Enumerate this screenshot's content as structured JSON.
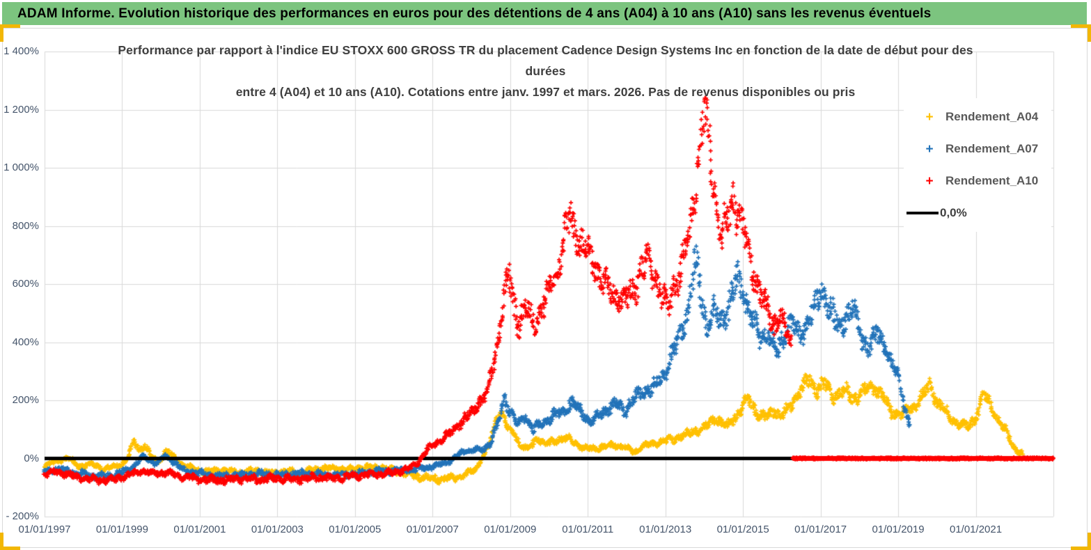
{
  "header": {
    "title": "ADAM Informe. Evolution historique des performances en euros pour des détentions de 4 ans (A04) à 10 ans (A10) sans les revenus éventuels"
  },
  "chart": {
    "title_line1": "Performance par rapport à l'indice EU STOXX 600 GROSS TR  du placement Cadence Design Systems Inc en fonction de la date de début pour des",
    "title_line2": "durées",
    "title_line3": "entre 4 (A04) et 10 ans (A10).  Cotations entre janv. 1997 et mars. 2026.  Pas de revenus disponibles ou pris"
  },
  "legend": {
    "items": [
      {
        "label": "Rendement_A04",
        "marker": "+",
        "color": "#FFC000"
      },
      {
        "label": "Rendement_A07",
        "marker": "+",
        "color": "#2273B9"
      },
      {
        "label": "Rendement_A10",
        "marker": "+",
        "color": "#FF0000"
      }
    ],
    "zero_label": "0,0%",
    "zero_color": "#000000"
  },
  "colors": {
    "header_bg": "#7CC47F",
    "grid": "#D9D9D9",
    "axis_text": "#44546A",
    "title_text": "#3F3F3F",
    "legend_text": "#595959",
    "zero_line": "#000000",
    "selection_accent": "#F2B705"
  },
  "chart_data": {
    "type": "scatter",
    "marker": "+",
    "title": "Performance par rapport à l'indice EU STOXX 600 GROSS TR du placement Cadence Design Systems Inc en fonction de la date de début pour des durées entre 4 (A04) et 10 ans (A10). Cotations entre janv. 1997 et mars. 2026. Pas de revenus disponibles ou pris",
    "x_axis": {
      "tick_labels": [
        "01/01/1997",
        "01/01/1999",
        "01/01/2001",
        "01/01/2003",
        "01/01/2005",
        "01/01/2007",
        "01/01/2009",
        "01/01/2011",
        "01/01/2013",
        "01/01/2015",
        "01/01/2017",
        "01/01/2019",
        "01/01/2021"
      ],
      "tick_years": [
        1997,
        1999,
        2001,
        2003,
        2005,
        2007,
        2009,
        2011,
        2013,
        2015,
        2017,
        2019,
        2021
      ],
      "range_years": [
        1997,
        2023
      ],
      "grid": true
    },
    "y_axis": {
      "ticks": [
        {
          "label": "1 400%",
          "value": 1400
        },
        {
          "label": "1 200%",
          "value": 1200
        },
        {
          "label": "1 000%",
          "value": 1000
        },
        {
          "label": "800%",
          "value": 800
        },
        {
          "label": "600%",
          "value": 600
        },
        {
          "label": "400%",
          "value": 400
        },
        {
          "label": "200%",
          "value": 200
        },
        {
          "label": "0%",
          "value": 0
        },
        {
          "label": "- 200%",
          "value": -200
        }
      ],
      "range": [
        -200,
        1400
      ],
      "unit": "%",
      "grid": true
    },
    "zero_line": {
      "value": 0,
      "label": "0,0%",
      "color": "#000000"
    },
    "legend_position": "right-top",
    "series": [
      {
        "name": "Rendement_A04",
        "color": "#FFC000",
        "anchors": [
          [
            1997.0,
            -25
          ],
          [
            1997.3,
            -10
          ],
          [
            1997.6,
            3
          ],
          [
            1997.9,
            -28
          ],
          [
            1998.2,
            -18
          ],
          [
            1998.5,
            -35
          ],
          [
            1998.8,
            -28
          ],
          [
            1999.0,
            -18
          ],
          [
            1999.15,
            5
          ],
          [
            1999.3,
            62
          ],
          [
            1999.45,
            28
          ],
          [
            1999.6,
            45
          ],
          [
            1999.75,
            8
          ],
          [
            1999.95,
            -12
          ],
          [
            2000.15,
            30
          ],
          [
            2000.3,
            8
          ],
          [
            2000.5,
            -18
          ],
          [
            2000.8,
            -35
          ],
          [
            2001.2,
            -48
          ],
          [
            2001.6,
            -40
          ],
          [
            2002.0,
            -50
          ],
          [
            2002.4,
            -42
          ],
          [
            2002.8,
            -52
          ],
          [
            2003.2,
            -45
          ],
          [
            2003.6,
            -50
          ],
          [
            2004.0,
            -38
          ],
          [
            2004.4,
            -32
          ],
          [
            2004.8,
            -38
          ],
          [
            2005.2,
            -32
          ],
          [
            2005.7,
            -30
          ],
          [
            2006.2,
            -48
          ],
          [
            2006.6,
            -62
          ],
          [
            2007.0,
            -70
          ],
          [
            2007.4,
            -72
          ],
          [
            2007.8,
            -58
          ],
          [
            2008.1,
            -38
          ],
          [
            2008.3,
            5
          ],
          [
            2008.5,
            60
          ],
          [
            2008.65,
            145
          ],
          [
            2008.8,
            150
          ],
          [
            2008.95,
            100
          ],
          [
            2009.1,
            88
          ],
          [
            2009.25,
            48
          ],
          [
            2009.45,
            30
          ],
          [
            2009.7,
            70
          ],
          [
            2009.9,
            50
          ],
          [
            2010.2,
            62
          ],
          [
            2010.5,
            70
          ],
          [
            2010.9,
            35
          ],
          [
            2011.3,
            35
          ],
          [
            2011.7,
            48
          ],
          [
            2012.0,
            35
          ],
          [
            2012.2,
            22
          ],
          [
            2012.5,
            45
          ],
          [
            2012.9,
            58
          ],
          [
            2013.3,
            70
          ],
          [
            2013.7,
            92
          ],
          [
            2014.0,
            105
          ],
          [
            2014.3,
            140
          ],
          [
            2014.6,
            108
          ],
          [
            2014.9,
            160
          ],
          [
            2015.15,
            205
          ],
          [
            2015.4,
            150
          ],
          [
            2015.6,
            140
          ],
          [
            2015.8,
            165
          ],
          [
            2016.0,
            145
          ],
          [
            2016.2,
            175
          ],
          [
            2016.45,
            230
          ],
          [
            2016.7,
            272
          ],
          [
            2016.9,
            235
          ],
          [
            2017.1,
            258
          ],
          [
            2017.35,
            215
          ],
          [
            2017.6,
            235
          ],
          [
            2017.85,
            205
          ],
          [
            2018.1,
            225
          ],
          [
            2018.35,
            252
          ],
          [
            2018.6,
            215
          ],
          [
            2018.85,
            160
          ],
          [
            2019.1,
            150
          ],
          [
            2019.35,
            175
          ],
          [
            2019.6,
            205
          ],
          [
            2019.8,
            252
          ],
          [
            2020.0,
            195
          ],
          [
            2020.3,
            150
          ],
          [
            2020.55,
            118
          ],
          [
            2020.8,
            108
          ],
          [
            2021.0,
            140
          ],
          [
            2021.2,
            225
          ],
          [
            2021.4,
            180
          ],
          [
            2021.6,
            120
          ],
          [
            2021.8,
            92
          ],
          [
            2021.95,
            45
          ],
          [
            2022.1,
            22
          ],
          [
            2022.2,
            15
          ]
        ]
      },
      {
        "name": "Rendement_A07",
        "color": "#2273B9",
        "anchors": [
          [
            1997.0,
            -42
          ],
          [
            1997.4,
            -35
          ],
          [
            1997.8,
            -50
          ],
          [
            1998.2,
            -58
          ],
          [
            1998.6,
            -62
          ],
          [
            1999.0,
            -48
          ],
          [
            1999.3,
            -25
          ],
          [
            1999.55,
            8
          ],
          [
            1999.7,
            -8
          ],
          [
            1999.9,
            -18
          ],
          [
            2000.1,
            10
          ],
          [
            2000.35,
            -15
          ],
          [
            2000.6,
            -40
          ],
          [
            2001.0,
            -52
          ],
          [
            2001.5,
            -62
          ],
          [
            2002.0,
            -58
          ],
          [
            2002.5,
            -52
          ],
          [
            2003.0,
            -58
          ],
          [
            2003.5,
            -52
          ],
          [
            2004.0,
            -55
          ],
          [
            2004.5,
            -58
          ],
          [
            2005.0,
            -52
          ],
          [
            2005.5,
            -45
          ],
          [
            2006.0,
            -42
          ],
          [
            2006.5,
            -38
          ],
          [
            2007.0,
            -28
          ],
          [
            2007.4,
            -12
          ],
          [
            2007.7,
            15
          ],
          [
            2007.9,
            28
          ],
          [
            2008.1,
            32
          ],
          [
            2008.3,
            28
          ],
          [
            2008.5,
            55
          ],
          [
            2008.7,
            125
          ],
          [
            2008.85,
            205
          ],
          [
            2009.0,
            165
          ],
          [
            2009.2,
            118
          ],
          [
            2009.4,
            148
          ],
          [
            2009.6,
            100
          ],
          [
            2009.85,
            122
          ],
          [
            2010.1,
            148
          ],
          [
            2010.35,
            158
          ],
          [
            2010.6,
            195
          ],
          [
            2010.85,
            152
          ],
          [
            2011.1,
            128
          ],
          [
            2011.4,
            158
          ],
          [
            2011.7,
            188
          ],
          [
            2011.95,
            165
          ],
          [
            2012.2,
            205
          ],
          [
            2012.5,
            232
          ],
          [
            2012.8,
            255
          ],
          [
            2013.0,
            300
          ],
          [
            2013.2,
            370
          ],
          [
            2013.4,
            420
          ],
          [
            2013.6,
            520
          ],
          [
            2013.75,
            680
          ],
          [
            2013.9,
            590
          ],
          [
            2014.05,
            455
          ],
          [
            2014.25,
            505
          ],
          [
            2014.45,
            465
          ],
          [
            2014.65,
            535
          ],
          [
            2014.85,
            620
          ],
          [
            2015.05,
            555
          ],
          [
            2015.25,
            480
          ],
          [
            2015.45,
            405
          ],
          [
            2015.65,
            450
          ],
          [
            2015.85,
            355
          ],
          [
            2016.05,
            420
          ],
          [
            2016.25,
            475
          ],
          [
            2016.45,
            420
          ],
          [
            2016.65,
            465
          ],
          [
            2016.85,
            515
          ],
          [
            2017.05,
            580
          ],
          [
            2017.25,
            515
          ],
          [
            2017.45,
            452
          ],
          [
            2017.65,
            488
          ],
          [
            2017.85,
            515
          ],
          [
            2018.05,
            420
          ],
          [
            2018.25,
            382
          ],
          [
            2018.45,
            428
          ],
          [
            2018.65,
            390
          ],
          [
            2018.85,
            322
          ],
          [
            2019.0,
            288
          ],
          [
            2019.1,
            225
          ],
          [
            2019.2,
            155
          ],
          [
            2019.3,
            122
          ]
        ]
      },
      {
        "name": "Rendement_A10",
        "color": "#FF0000",
        "anchors": [
          [
            1997.0,
            -55
          ],
          [
            1997.3,
            -45
          ],
          [
            1997.6,
            -55
          ],
          [
            1998.0,
            -68
          ],
          [
            1998.4,
            -75
          ],
          [
            1998.8,
            -72
          ],
          [
            1999.2,
            -58
          ],
          [
            1999.5,
            -42
          ],
          [
            1999.8,
            -52
          ],
          [
            2000.1,
            -48
          ],
          [
            2000.5,
            -62
          ],
          [
            2001.0,
            -70
          ],
          [
            2001.5,
            -75
          ],
          [
            2002.0,
            -70
          ],
          [
            2002.5,
            -73
          ],
          [
            2003.0,
            -68
          ],
          [
            2003.5,
            -71
          ],
          [
            2004.0,
            -65
          ],
          [
            2004.5,
            -68
          ],
          [
            2005.0,
            -60
          ],
          [
            2005.5,
            -55
          ],
          [
            2006.0,
            -48
          ],
          [
            2006.35,
            -38
          ],
          [
            2006.6,
            -18
          ],
          [
            2006.9,
            35
          ],
          [
            2007.2,
            62
          ],
          [
            2007.5,
            92
          ],
          [
            2007.8,
            135
          ],
          [
            2008.05,
            162
          ],
          [
            2008.25,
            205
          ],
          [
            2008.4,
            228
          ],
          [
            2008.55,
            310
          ],
          [
            2008.7,
            420
          ],
          [
            2008.85,
            560
          ],
          [
            2008.95,
            645
          ],
          [
            2009.1,
            525
          ],
          [
            2009.2,
            462
          ],
          [
            2009.4,
            520
          ],
          [
            2009.6,
            462
          ],
          [
            2009.8,
            515
          ],
          [
            2010.0,
            572
          ],
          [
            2010.2,
            660
          ],
          [
            2010.4,
            762
          ],
          [
            2010.55,
            828
          ],
          [
            2010.7,
            770
          ],
          [
            2010.9,
            722
          ],
          [
            2011.1,
            682
          ],
          [
            2011.3,
            635
          ],
          [
            2011.5,
            585
          ],
          [
            2011.75,
            552
          ],
          [
            2011.95,
            545
          ],
          [
            2012.15,
            565
          ],
          [
            2012.35,
            645
          ],
          [
            2012.55,
            692
          ],
          [
            2012.75,
            622
          ],
          [
            2012.95,
            552
          ],
          [
            2013.1,
            522
          ],
          [
            2013.25,
            602
          ],
          [
            2013.45,
            682
          ],
          [
            2013.6,
            752
          ],
          [
            2013.75,
            902
          ],
          [
            2013.9,
            1105
          ],
          [
            2014.0,
            1200
          ],
          [
            2014.1,
            1125
          ],
          [
            2014.2,
            1010
          ],
          [
            2014.3,
            888
          ],
          [
            2014.45,
            762
          ],
          [
            2014.6,
            822
          ],
          [
            2014.75,
            888
          ],
          [
            2014.9,
            852
          ],
          [
            2015.05,
            762
          ],
          [
            2015.2,
            655
          ],
          [
            2015.35,
            608
          ],
          [
            2015.5,
            562
          ],
          [
            2015.65,
            502
          ],
          [
            2015.8,
            452
          ],
          [
            2015.95,
            512
          ],
          [
            2016.1,
            432
          ],
          [
            2016.25,
            385
          ]
        ],
        "flat_zero": {
          "from": 2016.28,
          "to": 2023.0,
          "value": 0
        }
      }
    ]
  }
}
